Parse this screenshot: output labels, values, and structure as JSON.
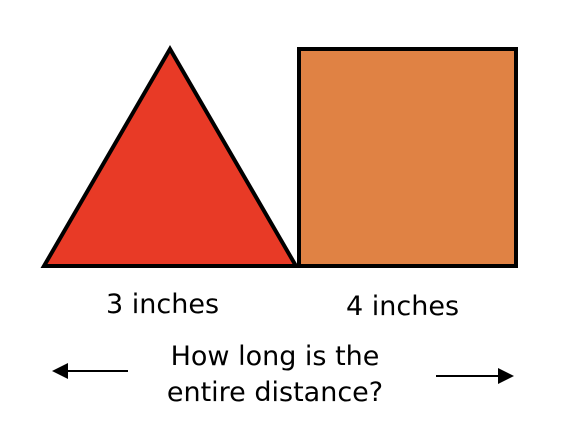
{
  "shapes": {
    "triangle": {
      "label": "3 inches",
      "fill": "#e83a26"
    },
    "square": {
      "label": "4 inches",
      "fill": "#e08244"
    }
  },
  "question": {
    "line1": "How long is the",
    "line2": "entire distance?"
  },
  "arrows": {
    "left_icon": "left-arrow",
    "right_icon": "right-arrow"
  }
}
